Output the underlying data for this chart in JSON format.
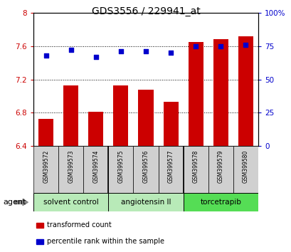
{
  "title": "GDS3556 / 229941_at",
  "samples": [
    "GSM399572",
    "GSM399573",
    "GSM399574",
    "GSM399575",
    "GSM399576",
    "GSM399577",
    "GSM399578",
    "GSM399579",
    "GSM399580"
  ],
  "bar_values": [
    6.73,
    7.13,
    6.81,
    7.13,
    7.08,
    6.93,
    7.65,
    7.68,
    7.72
  ],
  "percentile_values": [
    68,
    72,
    67,
    71,
    71,
    70,
    75,
    75,
    76
  ],
  "bar_color": "#cc0000",
  "dot_color": "#0000cc",
  "ylim_left": [
    6.4,
    8.0
  ],
  "ylim_right": [
    0,
    100
  ],
  "yticks_left": [
    6.4,
    6.8,
    7.2,
    7.6,
    8.0
  ],
  "ytick_labels_left": [
    "6.4",
    "6.8",
    "7.2",
    "7.6",
    "8"
  ],
  "yticks_right": [
    0,
    25,
    50,
    75,
    100
  ],
  "ytick_labels_right": [
    "0",
    "25",
    "50",
    "75",
    "100%"
  ],
  "groups": [
    {
      "label": "solvent control",
      "start": 0,
      "end": 3,
      "color": "#b8eab8"
    },
    {
      "label": "angiotensin II",
      "start": 3,
      "end": 6,
      "color": "#b8eab8"
    },
    {
      "label": "torcetrapib",
      "start": 6,
      "end": 9,
      "color": "#55dd55"
    }
  ],
  "agent_label": "agent",
  "legend_bar_label": "transformed count",
  "legend_dot_label": "percentile rank within the sample",
  "xlabel_bg": "#d0d0d0",
  "bar_width": 0.6,
  "title_fontsize": 10,
  "tick_fontsize": 7.5,
  "sample_fontsize": 5.5,
  "group_fontsize": 7.5,
  "legend_fontsize": 7,
  "agent_fontsize": 8
}
